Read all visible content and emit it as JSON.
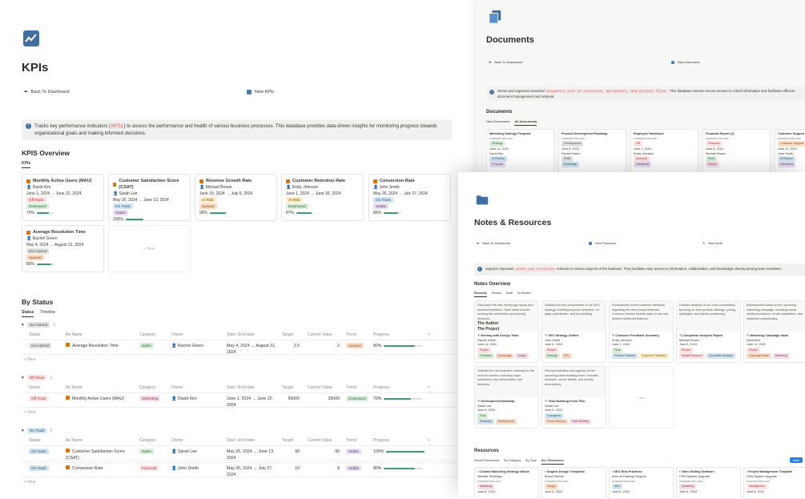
{
  "kpis": {
    "title": "KPIs",
    "back_label": "Back To Dashboard",
    "new_label": "New KPIs",
    "callout_pre": "Tracks key performance indicators (",
    "callout_code": "KPIs",
    "callout_post": ") to assess the performance and health of various business processes. This database provides data-driven insights for monitoring progress towards organizational goals and making informed decisions.",
    "overview_title": "KPIS Overview",
    "overview_tab": "KPIs",
    "new_card": "+ New",
    "cards": [
      {
        "title": "Monthly Active Users (MAU)",
        "owner": "David Kim",
        "dates": "June 1, 2024 → June 22, 2024",
        "status": "Off Track",
        "status_color": "t-red",
        "trend": "Downward",
        "trend_color": "t-green",
        "progress": "70%",
        "pct": 0.7
      },
      {
        "title": "Customer Satisfaction Score (CSAT)",
        "owner": "Sarah Lee",
        "dates": "May 26, 2024 → June 13, 2024",
        "status": "On Track",
        "status_color": "t-blue",
        "trend": "Stable",
        "trend_color": "t-purple",
        "progress": "100%",
        "pct": 1.0
      },
      {
        "title": "Revenue Growth Rate",
        "owner": "Michael Brown",
        "dates": "June 15, 2024 → July 6, 2024",
        "status": "At Risk",
        "status_color": "t-yellow",
        "trend": "Upward",
        "trend_color": "t-orange",
        "progress": "90%",
        "pct": 0.9
      },
      {
        "title": "Customer Retention Rate",
        "owner": "Emily Johnson",
        "dates": "June 1, 2024 → June 30, 2024",
        "status": "At Risk",
        "status_color": "t-yellow",
        "trend": "Downward",
        "trend_color": "t-green",
        "progress": "87%",
        "pct": 0.87
      },
      {
        "title": "Conversion Rate",
        "owner": "John Smith",
        "dates": "May 26, 2024 → July 27, 2024",
        "status": "On Track",
        "status_color": "t-blue",
        "trend": "Stable",
        "trend_color": "t-purple",
        "progress": "80%",
        "pct": 0.8
      },
      {
        "title": "Average Resolution Time",
        "owner": "Rachel Green",
        "dates": "May 4, 2024 → August 31, 2024",
        "status": "Not started",
        "status_color": "t-gray",
        "trend": "Upward",
        "trend_color": "t-orange",
        "progress": "80%",
        "pct": 0.8
      }
    ],
    "by_status_title": "By Status",
    "tab_status": "Status",
    "tab_timeline": "Timeline",
    "columns": [
      "Status",
      "Aa Name",
      "Category",
      "Owner",
      "Start / End date",
      "Target",
      "Current Value",
      "Trend",
      "Progress"
    ],
    "new_row": "+ New",
    "groups": [
      {
        "label": "Not started",
        "count": "1",
        "color": "t-gray",
        "rows": [
          {
            "status": "Not started",
            "name": "Average Resolution Time",
            "category": "Sales",
            "cat_color": "t-green",
            "owner": "Rachel Green",
            "dates": "May 4, 2024 → August 31, 2024",
            "target": "2.5",
            "current": "2",
            "trend": "Upward",
            "trend_color": "t-orange",
            "progress": "80%",
            "pct": 0.8
          }
        ]
      },
      {
        "label": "Off Track",
        "count": "1",
        "color": "t-red",
        "rows": [
          {
            "status": "Off Track",
            "name": "Monthly Active Users (MAU)",
            "category": "Marketing",
            "cat_color": "t-pink",
            "owner": "David Kim",
            "dates": "June 1, 2024 → June 22, 2024",
            "target": "50000",
            "current": "35000",
            "trend": "Downward",
            "trend_color": "t-green",
            "progress": "70%",
            "pct": 0.7
          }
        ]
      },
      {
        "label": "On Track",
        "count": "2",
        "color": "t-blue",
        "rows": [
          {
            "status": "On Track",
            "name": "Customer Satisfaction Score (CSAT)",
            "category": "Sales",
            "cat_color": "t-green",
            "owner": "Sarah Lee",
            "dates": "May 26, 2024 → June 13, 2024",
            "target": "90",
            "current": "90",
            "trend": "Stable",
            "trend_color": "t-purple",
            "progress": "100%",
            "pct": 1.0
          },
          {
            "status": "On Track",
            "name": "Conversion Rate",
            "category": "Financial",
            "cat_color": "t-red",
            "owner": "John Smith",
            "dates": "May 26, 2024 → July 27, 2024",
            "target": "10",
            "current": "8",
            "trend": "Stable",
            "trend_color": "t-purple",
            "progress": "80%",
            "pct": 0.8
          }
        ]
      }
    ]
  },
  "documents": {
    "title": "Documents",
    "back_label": "Back To Dashboard",
    "new_label": "New Document",
    "callout_pre": "Stores and organizes essential ",
    "callout_code": "documents such as contracts, agreements, and project files.",
    "callout_post": " This database ensures secure access to critical information and facilitates efficient document management and retrieval.",
    "section": "Documents",
    "tabs": [
      "New Documents",
      "All Documents"
    ],
    "cards": [
      {
        "title": "Marketing Strategy Proposal",
        "url": "example.link.com",
        "tag": "Strategy",
        "tag_color": "t-green",
        "date": "June 11, 2024",
        "owner": "David Kim",
        "status": "In Review",
        "status_color": "t-blue",
        "type": "Proposal",
        "type_color": "t-purple"
      },
      {
        "title": "Product Development Roadmap",
        "url": "example.link.com",
        "tag": "Development",
        "tag_color": "t-gray",
        "date": "June 6, 2024",
        "owner": "Rachel Green",
        "status": "Draft",
        "status_color": "t-gray",
        "type": "Roadmap",
        "type_color": "t-blue"
      },
      {
        "title": "Employee Handbook",
        "url": "example.link.com",
        "tag": "HR",
        "tag_color": "t-red",
        "date": "June 1, 2024",
        "owner": "Emily Johnson",
        "status": "Archived",
        "status_color": "t-red",
        "type": "Handbook",
        "type_color": "t-purple"
      },
      {
        "title": "Financial Report Q1",
        "url": "example.link.com",
        "tag": "Financial",
        "tag_color": "t-red",
        "date": "June 8, 2024",
        "owner": "Michael Brown",
        "status": "Final",
        "status_color": "t-green",
        "type": "Report",
        "type_color": "t-pink"
      },
      {
        "title": "Customer Support",
        "url": "example.link.com",
        "tag": "Customer Support",
        "tag_color": "t-orange",
        "date": "June 11, 2024",
        "owner": "John Smith",
        "status": "In Review",
        "status_color": "t-blue",
        "type": "Handbook",
        "type_color": "t-purple"
      }
    ]
  },
  "notes": {
    "title": "Notes & Resources",
    "back_label": "Back To Dashboard",
    "new_resource": "New Resource",
    "new_note": "New Note",
    "callout_pre": "organize important ",
    "callout_code": "notes and resources",
    "callout_post": " relevant to various aspects of the business. They facilitate easy access to information, collaboration, and knowledge-sharing among team members.",
    "overview": "Notes Overview",
    "tabs": [
      "Recently",
      "Pinned",
      "Draft",
      "In Review"
    ],
    "new_card": "+ New",
    "cards": [
      {
        "preview": "Discussed the new homepage layout and received feedback. Team leads include revising the wireframes and sharing revisions.",
        "big1": "The Author",
        "big2": "The Project",
        "title": "Meeting with Design Team",
        "owner": "Rachel Green",
        "date": "June 11, 2024",
        "status": "Pinned",
        "status_color": "t-red",
        "t1": "Feedback",
        "t1c": "t-green",
        "t2": "Homepage",
        "t2c": "t-orange",
        "t3": "Design",
        "t3c": "t-pink"
      },
      {
        "preview": "Outlined the key components of our SEO strategy, including keyword research, on-page optimization, and link building.",
        "big1": "",
        "big2": "",
        "title": "SEO Strategy Outline",
        "owner": "John Smith",
        "date": "June 6, 2024",
        "status": "Pinned",
        "status_color": "t-red",
        "t1": "Strategy",
        "t1c": "t-green",
        "t2": "SEO",
        "t2c": "t-orange",
        "t3": "",
        "t3c": ""
      },
      {
        "preview": "Summarized recent customer feedback regarding the new product features. Common themes include ease of use and desired additional features.",
        "big1": "",
        "big2": "",
        "title": "Customer Feedback Summary",
        "owner": "Emily Johnson",
        "date": "June 1, 2024",
        "status": "Final",
        "status_color": "t-green",
        "t1": "Product Features",
        "t1c": "t-blue",
        "t2": "Customer Feedback",
        "t2c": "t-yellow",
        "t3": "",
        "t3c": ""
      },
      {
        "preview": "Detailed analysis of our main competitors, focusing on their product offerings, pricing strategies, and market positioning.",
        "big1": "",
        "big2": "",
        "title": "Competitor Analysis Report",
        "owner": "Michael Brown",
        "date": "June 8, 2024",
        "status": "Pinned",
        "status_color": "t-red",
        "t1": "Market Research",
        "t1c": "t-red",
        "t2": "Competitor Analysis",
        "t2c": "t-blue",
        "t3": "",
        "t3c": ""
      },
      {
        "preview": "Brainstormed ideas for the upcoming marketing campaign, including social media promotions, email newsletters, and influencer partnerships.",
        "big1": "",
        "big2": "",
        "title": "Marketing Campaign Ideas",
        "owner": "David Kim",
        "date": "June 11, 2024",
        "status": "Pinned",
        "status_color": "t-red",
        "t1": "Campaign Ideas",
        "t1c": "t-orange",
        "t2": "Marketing",
        "t2c": "t-pink",
        "t3": "",
        "t3c": ""
      },
      {
        "preview": "Outlined the development roadmap for the next six months, including major milestones, key deliverables, and timelines.",
        "big1": "",
        "big2": "",
        "title": "Development Roadmap",
        "owner": "Sarah Lee",
        "date": "June 6, 2024",
        "status": "Final",
        "status_color": "t-green",
        "t1": "Roadmap",
        "t1c": "t-blue",
        "t2": "Development",
        "t2c": "t-orange",
        "t3": "",
        "t3c": ""
      },
      {
        "preview": "Planned activities and logistics for the upcoming team building event. Includes schedule, venue details, and activity descriptions.",
        "big1": "",
        "big2": "",
        "title": "Team Building Event Plan",
        "owner": "Sarah Lee",
        "date": "June 4, 2024",
        "status": "In progress",
        "status_color": "t-blue",
        "t1": "Event Planning",
        "t1c": "t-orange",
        "t2": "Team Building",
        "t2c": "t-pink",
        "t3": "",
        "t3c": ""
      }
    ],
    "resources_title": "Resources",
    "res_tabs": [
      "Recent Resources",
      "By Category",
      "By Type",
      "ALL Resources"
    ],
    "res_new": "New",
    "resources": [
      {
        "title": "Content Marketing Strategy eBook",
        "owner": "Website Redesign",
        "url": "example.link.com",
        "tag": "Marketing",
        "tag_color": "t-pink",
        "date": "June 8, 2024"
      },
      {
        "title": "Graphic Design Templates",
        "owner": "Brand Refresh",
        "url": "example.link.com",
        "tag": "Design",
        "tag_color": "t-orange",
        "date": "June 6, 2024"
      },
      {
        "title": "SEO Best Practices",
        "owner": "Internal Training Program",
        "url": "example.link.com",
        "tag": "SEO",
        "tag_color": "t-blue",
        "date": "June 6, 2024"
      },
      {
        "title": "Video Editing Software",
        "owner": "CRM System Upgrade",
        "url": "example.link.com",
        "tag": "Marketing",
        "tag_color": "t-pink",
        "date": "June 6, 2024"
      },
      {
        "title": "Project Management Template",
        "owner": "CRM System Upgrade",
        "url": "example.link.com",
        "tag": "Management",
        "tag_color": "t-red",
        "date": "June 6, 2024"
      }
    ]
  },
  "colors": {
    "accent": "#3f6fa3",
    "progress": "#3c9b6b",
    "callout_bg": "#f1f1ef",
    "new_button": "#2383e2"
  },
  "icons": [
    "chart-line-icon",
    "documents-icon",
    "folder-icon",
    "arrow-left-icon",
    "person-icon",
    "info-icon"
  ]
}
